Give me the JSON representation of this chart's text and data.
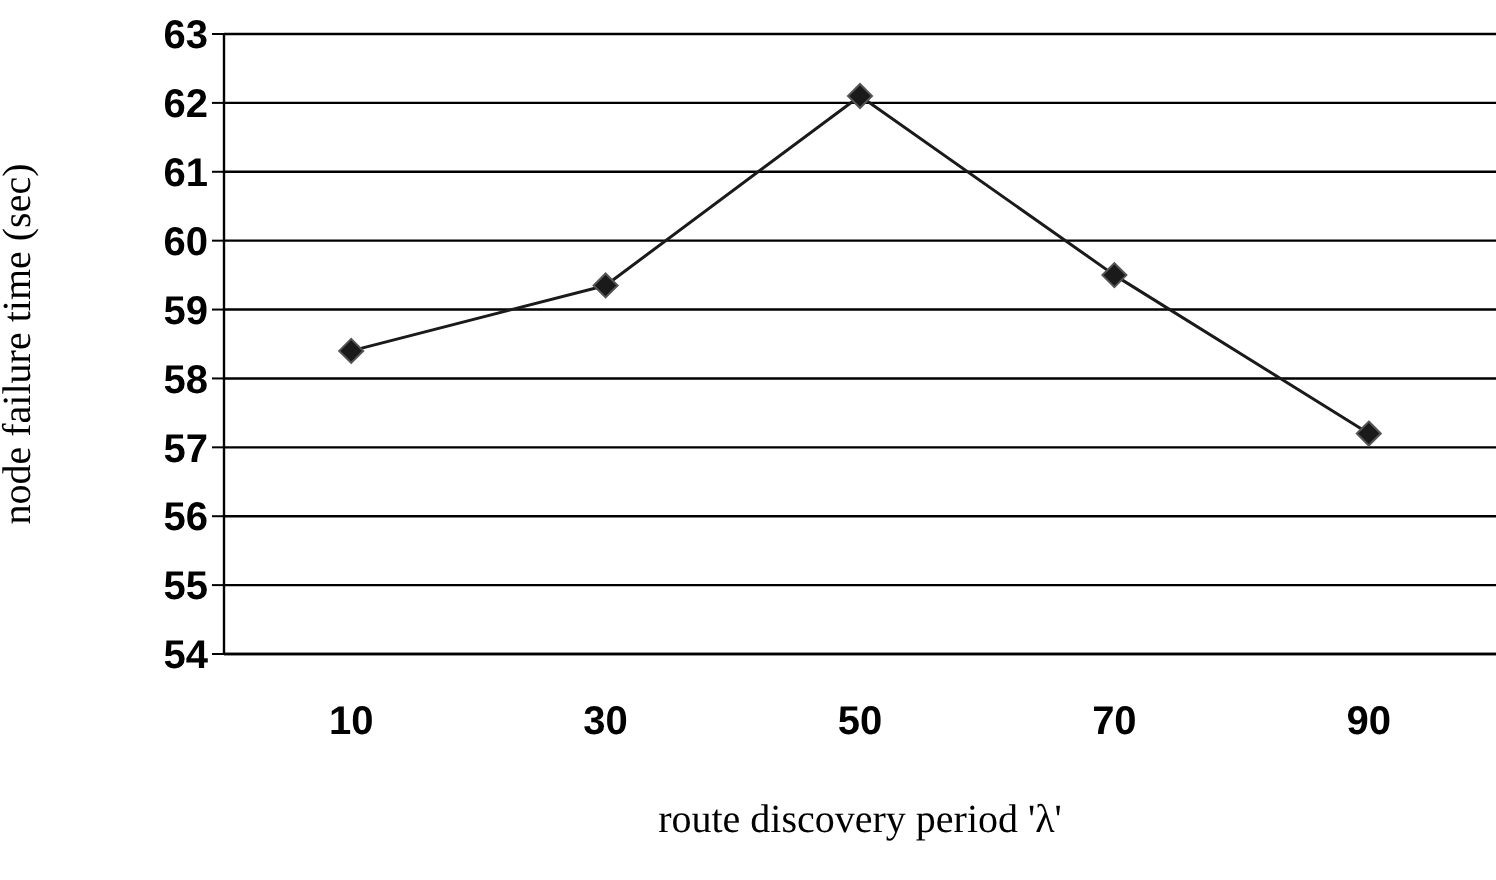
{
  "chart_data": {
    "type": "line",
    "xlabel": "route discovery period 'λ'",
    "ylabel": "node failure time  (sec)",
    "categories": [
      "10",
      "30",
      "50",
      "70",
      "90"
    ],
    "series": [
      {
        "color": "#1a1a1a",
        "values": [
          58.4,
          59.35,
          62.1,
          59.5,
          57.2
        ]
      }
    ],
    "ylim": [
      54,
      63
    ],
    "yticks": [
      54,
      55,
      56,
      57,
      58,
      59,
      60,
      61,
      62,
      63
    ],
    "grid": "y",
    "marker": "diamond",
    "line_style": "solid"
  }
}
